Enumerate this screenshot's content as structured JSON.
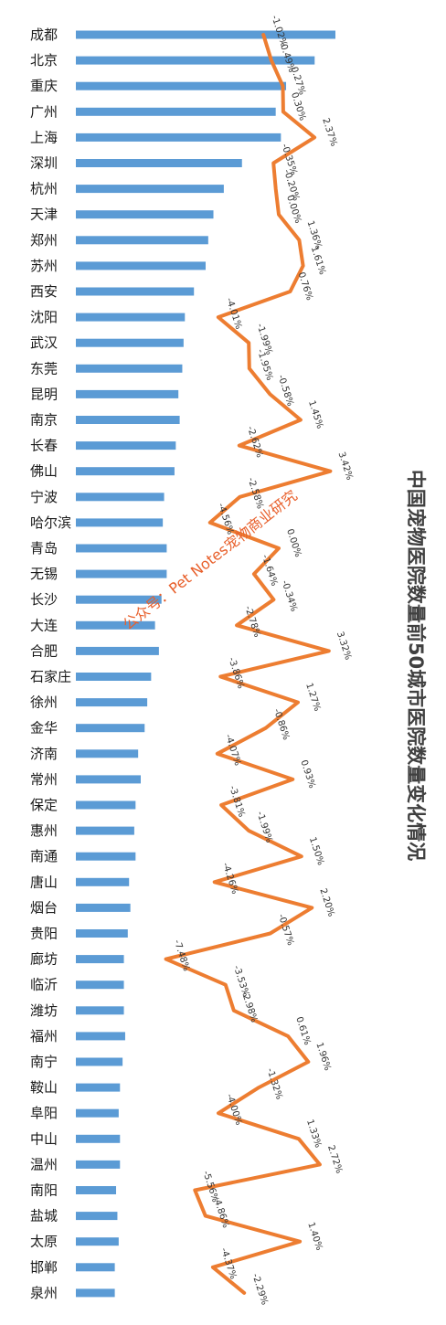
{
  "chart_data": {
    "type": "bar",
    "title": "中国宠物医院数量前50城市医院数量变化情况",
    "watermark": "公众号：Pet Notes宠物商业研究",
    "bar_color": "#5b9bd5",
    "line_color": "#ed7d31",
    "categories": [
      "成都",
      "北京",
      "重庆",
      "广州",
      "上海",
      "深圳",
      "杭州",
      "天津",
      "郑州",
      "苏州",
      "西安",
      "沈阳",
      "武汉",
      "东莞",
      "昆明",
      "南京",
      "长春",
      "佛山",
      "宁波",
      "哈尔滨",
      "青岛",
      "无锡",
      "长沙",
      "大连",
      "合肥",
      "石家庄",
      "徐州",
      "金华",
      "济南",
      "常州",
      "保定",
      "惠州",
      "南通",
      "唐山",
      "烟台",
      "贵阳",
      "廊坊",
      "临沂",
      "潍坊",
      "福州",
      "南宁",
      "鞍山",
      "阜阳",
      "中山",
      "温州",
      "南阳",
      "盐城",
      "太原",
      "邯郸",
      "泉州"
    ],
    "series": [
      {
        "type": "bar",
        "values": [
          1000,
          920,
          810,
          770,
          790,
          640,
          570,
          530,
          510,
          500,
          455,
          420,
          415,
          410,
          395,
          400,
          385,
          380,
          340,
          335,
          350,
          350,
          330,
          305,
          320,
          290,
          275,
          265,
          240,
          250,
          230,
          225,
          230,
          205,
          210,
          200,
          185,
          185,
          185,
          190,
          180,
          170,
          165,
          170,
          170,
          155,
          160,
          165,
          150,
          150
        ]
      },
      {
        "type": "line",
        "values": [
          -1.02,
          -0.49,
          0.27,
          0.3,
          2.37,
          -0.35,
          -0.2,
          0.0,
          1.36,
          1.61,
          0.76,
          -4.01,
          -1.99,
          -1.95,
          -0.58,
          1.45,
          -2.62,
          3.42,
          -2.58,
          -4.56,
          0.0,
          -1.64,
          -0.34,
          -2.78,
          3.32,
          -3.86,
          1.27,
          -0.86,
          -4.07,
          0.93,
          -3.81,
          -1.99,
          1.5,
          -4.26,
          2.2,
          -0.57,
          -7.48,
          -3.53,
          -2.98,
          0.61,
          1.96,
          -1.32,
          -4.0,
          1.33,
          2.72,
          -5.56,
          -4.86,
          1.4,
          -4.37,
          -2.29
        ]
      }
    ],
    "labels": [
      "-1.02%",
      "-0.49%",
      "0.27%",
      "0.30%",
      "2.37%",
      "-0.35%",
      "-0.20%",
      "0.00%",
      "1.36%",
      "1.61%",
      "0.76%",
      "-4.01%",
      "-1.99%",
      "-1.95%",
      "-0.58%",
      "1.45%",
      "-2.62%",
      "3.42%",
      "-2.58%",
      "-4.56%",
      "0.00%",
      "-1.64%",
      "-0.34%",
      "-2.78%",
      "3.32%",
      "-3.86%",
      "1.27%",
      "-0.86%",
      "-4.07%",
      "0.93%",
      "-3.81%",
      "-1.99%",
      "1.50%",
      "-4.26%",
      "2.20%",
      "-0.57%",
      "-7.48%",
      "-3.53%",
      "-2.98%",
      "0.61%",
      "1.96%",
      "-1.32%",
      "-4.00%",
      "1.33%",
      "2.72%",
      "-5.56%",
      "-4.86%",
      "1.40%",
      "-4.37%",
      "-2.29%"
    ],
    "grid": false,
    "legend": "none"
  }
}
